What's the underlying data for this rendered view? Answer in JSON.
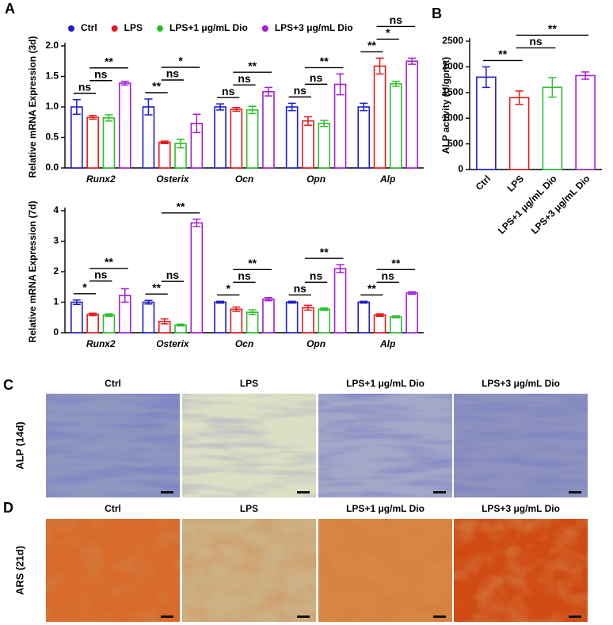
{
  "chart_data": [
    {
      "type": "grouped_bar",
      "panel": "A",
      "ylabel": "Relative mRNA Expression (3d)",
      "categories": [
        "Runx2",
        "Osterix",
        "Ocn",
        "Opn",
        "Alp"
      ],
      "series": [
        {
          "name": "Ctrl",
          "color": "#1c1ccc",
          "values": [
            1.0,
            1.0,
            1.0,
            1.0,
            1.0
          ],
          "errors": [
            0.12,
            0.13,
            0.05,
            0.06,
            0.06
          ]
        },
        {
          "name": "LPS",
          "color": "#e41a1c",
          "values": [
            0.83,
            0.42,
            0.96,
            0.77,
            1.67
          ],
          "errors": [
            0.03,
            0.02,
            0.03,
            0.07,
            0.13
          ]
        },
        {
          "name": "LPS+1 μg/mL Dio",
          "color": "#2cbf2c",
          "values": [
            0.82,
            0.4,
            0.95,
            0.73,
            1.38
          ],
          "errors": [
            0.05,
            0.07,
            0.06,
            0.05,
            0.04
          ]
        },
        {
          "name": "LPS+3 μg/mL Dio",
          "color": "#a21ed2",
          "values": [
            1.39,
            0.73,
            1.25,
            1.37,
            1.75
          ],
          "errors": [
            0.03,
            0.15,
            0.07,
            0.17,
            0.05
          ]
        }
      ],
      "ylim": [
        0,
        2.0
      ],
      "yticks": [
        {
          "value": 0,
          "label": "0.0"
        },
        {
          "value": 0.5,
          "label": "0.5"
        },
        {
          "value": 1.0,
          "label": "1.0"
        },
        {
          "value": 1.5,
          "label": "1.5"
        },
        {
          "value": 2.0,
          "label": "2.0"
        }
      ],
      "legend": true,
      "annotations": [
        {
          "category": 0,
          "bars": [
            0,
            1
          ],
          "text": "ns"
        },
        {
          "category": 0,
          "bars": [
            1,
            2
          ],
          "text": "ns"
        },
        {
          "category": 0,
          "bars": [
            1,
            3
          ],
          "text": "**"
        },
        {
          "category": 1,
          "bars": [
            0,
            1
          ],
          "text": "**"
        },
        {
          "category": 1,
          "bars": [
            1,
            2
          ],
          "text": "ns"
        },
        {
          "category": 1,
          "bars": [
            1,
            3
          ],
          "text": "*"
        },
        {
          "category": 2,
          "bars": [
            0,
            1
          ],
          "text": "ns"
        },
        {
          "category": 2,
          "bars": [
            1,
            2
          ],
          "text": "ns"
        },
        {
          "category": 2,
          "bars": [
            1,
            3
          ],
          "text": "**"
        },
        {
          "category": 3,
          "bars": [
            0,
            1
          ],
          "text": "ns"
        },
        {
          "category": 3,
          "bars": [
            1,
            2
          ],
          "text": "ns"
        },
        {
          "category": 3,
          "bars": [
            1,
            3
          ],
          "text": "**"
        },
        {
          "category": 4,
          "bars": [
            0,
            1
          ],
          "text": "**"
        },
        {
          "category": 4,
          "bars": [
            1,
            2
          ],
          "text": "*"
        },
        {
          "category": 4,
          "bars": [
            1,
            3
          ],
          "text": "ns"
        }
      ]
    },
    {
      "type": "grouped_bar",
      "ylabel": "Relative mRNA Expression (7d)",
      "categories": [
        "Runx2",
        "Osterix",
        "Ocn",
        "Opn",
        "Alp"
      ],
      "series": [
        {
          "name": "Ctrl",
          "color": "#1c1ccc",
          "values": [
            1.0,
            1.0,
            1.0,
            1.0,
            1.0
          ],
          "errors": [
            0.07,
            0.06,
            0.03,
            0.03,
            0.03
          ]
        },
        {
          "name": "LPS",
          "color": "#e41a1c",
          "values": [
            0.6,
            0.37,
            0.77,
            0.82,
            0.58
          ],
          "errors": [
            0.04,
            0.08,
            0.07,
            0.08,
            0.04
          ]
        },
        {
          "name": "LPS+1 μg/mL Dio",
          "color": "#2cbf2c",
          "values": [
            0.58,
            0.25,
            0.67,
            0.77,
            0.52
          ],
          "errors": [
            0.04,
            0.03,
            0.08,
            0.04,
            0.03
          ]
        },
        {
          "name": "LPS+3 μg/mL Dio",
          "color": "#a21ed2",
          "values": [
            1.22,
            3.6,
            1.1,
            2.1,
            1.3
          ],
          "errors": [
            0.22,
            0.12,
            0.05,
            0.13,
            0.04
          ]
        }
      ],
      "ylim": [
        0,
        4
      ],
      "yticks": [
        0,
        1,
        2,
        3,
        4
      ],
      "legend": false,
      "annotations": [
        {
          "category": 0,
          "bars": [
            0,
            1
          ],
          "text": "*"
        },
        {
          "category": 0,
          "bars": [
            1,
            2
          ],
          "text": "ns"
        },
        {
          "category": 0,
          "bars": [
            1,
            3
          ],
          "text": "**"
        },
        {
          "category": 1,
          "bars": [
            0,
            1
          ],
          "text": "**"
        },
        {
          "category": 1,
          "bars": [
            1,
            2
          ],
          "text": "ns"
        },
        {
          "category": 1,
          "bars": [
            1,
            3
          ],
          "text": "**"
        },
        {
          "category": 2,
          "bars": [
            0,
            1
          ],
          "text": "*"
        },
        {
          "category": 2,
          "bars": [
            1,
            2
          ],
          "text": "ns"
        },
        {
          "category": 2,
          "bars": [
            1,
            3
          ],
          "text": "**"
        },
        {
          "category": 3,
          "bars": [
            0,
            1
          ],
          "text": "ns"
        },
        {
          "category": 3,
          "bars": [
            1,
            2
          ],
          "text": "ns"
        },
        {
          "category": 3,
          "bars": [
            1,
            3
          ],
          "text": "**"
        },
        {
          "category": 4,
          "bars": [
            0,
            1
          ],
          "text": "**"
        },
        {
          "category": 4,
          "bars": [
            1,
            2
          ],
          "text": "ns"
        },
        {
          "category": 4,
          "bars": [
            1,
            3
          ],
          "text": "**"
        }
      ]
    },
    {
      "type": "bar",
      "panel": "B",
      "ylabel": "ALP activity (U/gprot)",
      "categories": [
        "Ctrl",
        "LPS",
        "LPS+1 μg/mL Dio",
        "LPS+3 μg/mL Dio"
      ],
      "values": [
        1800,
        1400,
        1600,
        1830
      ],
      "errors": [
        200,
        130,
        190,
        70
      ],
      "colors": [
        "#1c1ccc",
        "#e41a1c",
        "#2cbf2c",
        "#a21ed2"
      ],
      "ylim": [
        0,
        2500
      ],
      "yticks": [
        0,
        500,
        1000,
        1500,
        2000,
        2500
      ],
      "annotations": [
        {
          "bars": [
            0,
            1
          ],
          "text": "**"
        },
        {
          "bars": [
            1,
            2
          ],
          "text": "ns"
        },
        {
          "bars": [
            1,
            3
          ],
          "text": "**"
        }
      ]
    }
  ],
  "images": [
    {
      "panel": "C",
      "row_label": "ALP (14d)",
      "columns": [
        "Ctrl",
        "LPS",
        "LPS+1 μg/mL Dio",
        "LPS+3 μg/mL Dio"
      ]
    },
    {
      "panel": "D",
      "row_label": "ARS (21d)",
      "columns": [
        "Ctrl",
        "LPS",
        "LPS+1 μg/mL Dio",
        "LPS+3 μg/mL Dio"
      ]
    }
  ]
}
